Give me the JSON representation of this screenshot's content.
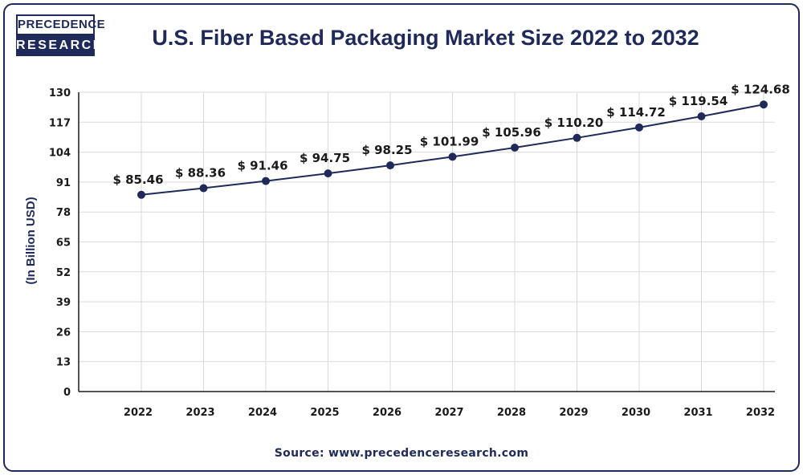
{
  "brand": {
    "line1": "PRECEDENCE",
    "line2": "RESEARCH"
  },
  "source": "Source: www.precedenceresearch.com",
  "colors": {
    "primary": "#1f2a5a",
    "grid": "#d9d9d9",
    "line": "#1f2a5a"
  },
  "chart_data": {
    "type": "line",
    "title": "U.S. Fiber Based Packaging Market Size 2022 to 2032",
    "xlabel": "",
    "ylabel": "(In Billion USD)",
    "categories": [
      "2022",
      "2023",
      "2024",
      "2025",
      "2026",
      "2027",
      "2028",
      "2029",
      "2030",
      "2031",
      "2032"
    ],
    "values": [
      85.46,
      88.36,
      91.46,
      94.75,
      98.25,
      101.99,
      105.96,
      110.2,
      114.72,
      119.54,
      124.68
    ],
    "labels": [
      "$ 85.46",
      "$ 88.36",
      "$ 91.46",
      "$ 94.75",
      "$ 98.25",
      "$ 101.99",
      "$ 105.96",
      "$ 110.20",
      "$ 114.72",
      "$ 119.54",
      "$ 124.68"
    ],
    "yticks": [
      0,
      13,
      26,
      39,
      52,
      65,
      78,
      91,
      104,
      117,
      130
    ],
    "ylim": [
      0,
      130
    ],
    "grid": true
  }
}
